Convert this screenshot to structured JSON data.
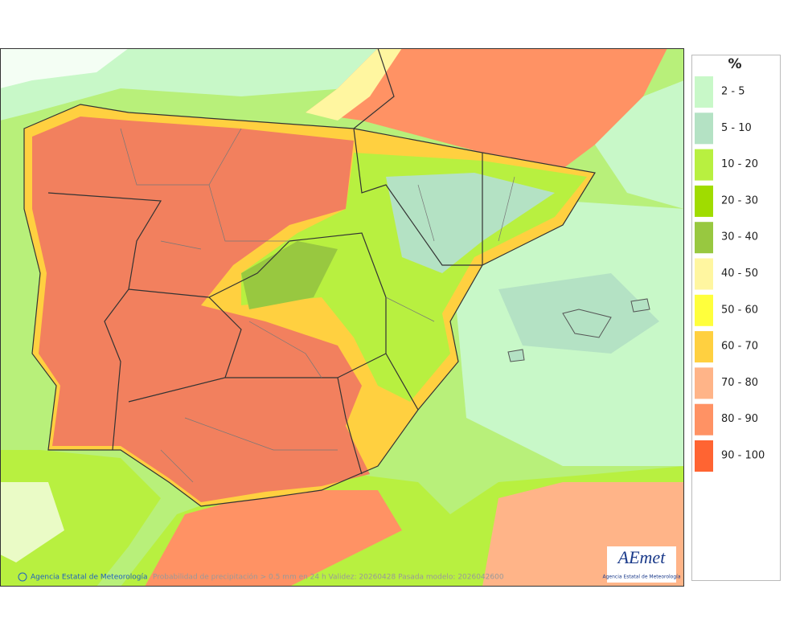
{
  "legend": {
    "title": "%",
    "items": [
      {
        "label": "2 - 5",
        "color": "#c8f8c8"
      },
      {
        "label": "5 - 10",
        "color": "#b4e2c4"
      },
      {
        "label": "10 - 20",
        "color": "#b8f040"
      },
      {
        "label": "20 - 30",
        "color": "#a0dc00"
      },
      {
        "label": "30 - 40",
        "color": "#98c840"
      },
      {
        "label": "40 - 50",
        "color": "#fff6a0"
      },
      {
        "label": "50 - 60",
        "color": "#ffff3c"
      },
      {
        "label": "60 - 70",
        "color": "#ffd040"
      },
      {
        "label": "70 - 80",
        "color": "#ffb488"
      },
      {
        "label": "80 - 90",
        "color": "#ff9264"
      },
      {
        "label": "90 - 100",
        "color": "#ff6432"
      }
    ]
  },
  "footer": {
    "credit": "Agencia Estatal de Meteorología",
    "caption": "Probabilidad de precipitación > 0.5 mm en 24 h Validez: 20260428 Pasada modelo: 2026042600"
  },
  "logo": {
    "name": "AEmet",
    "subtitle": "Agencia Estatal de Meteorología"
  }
}
